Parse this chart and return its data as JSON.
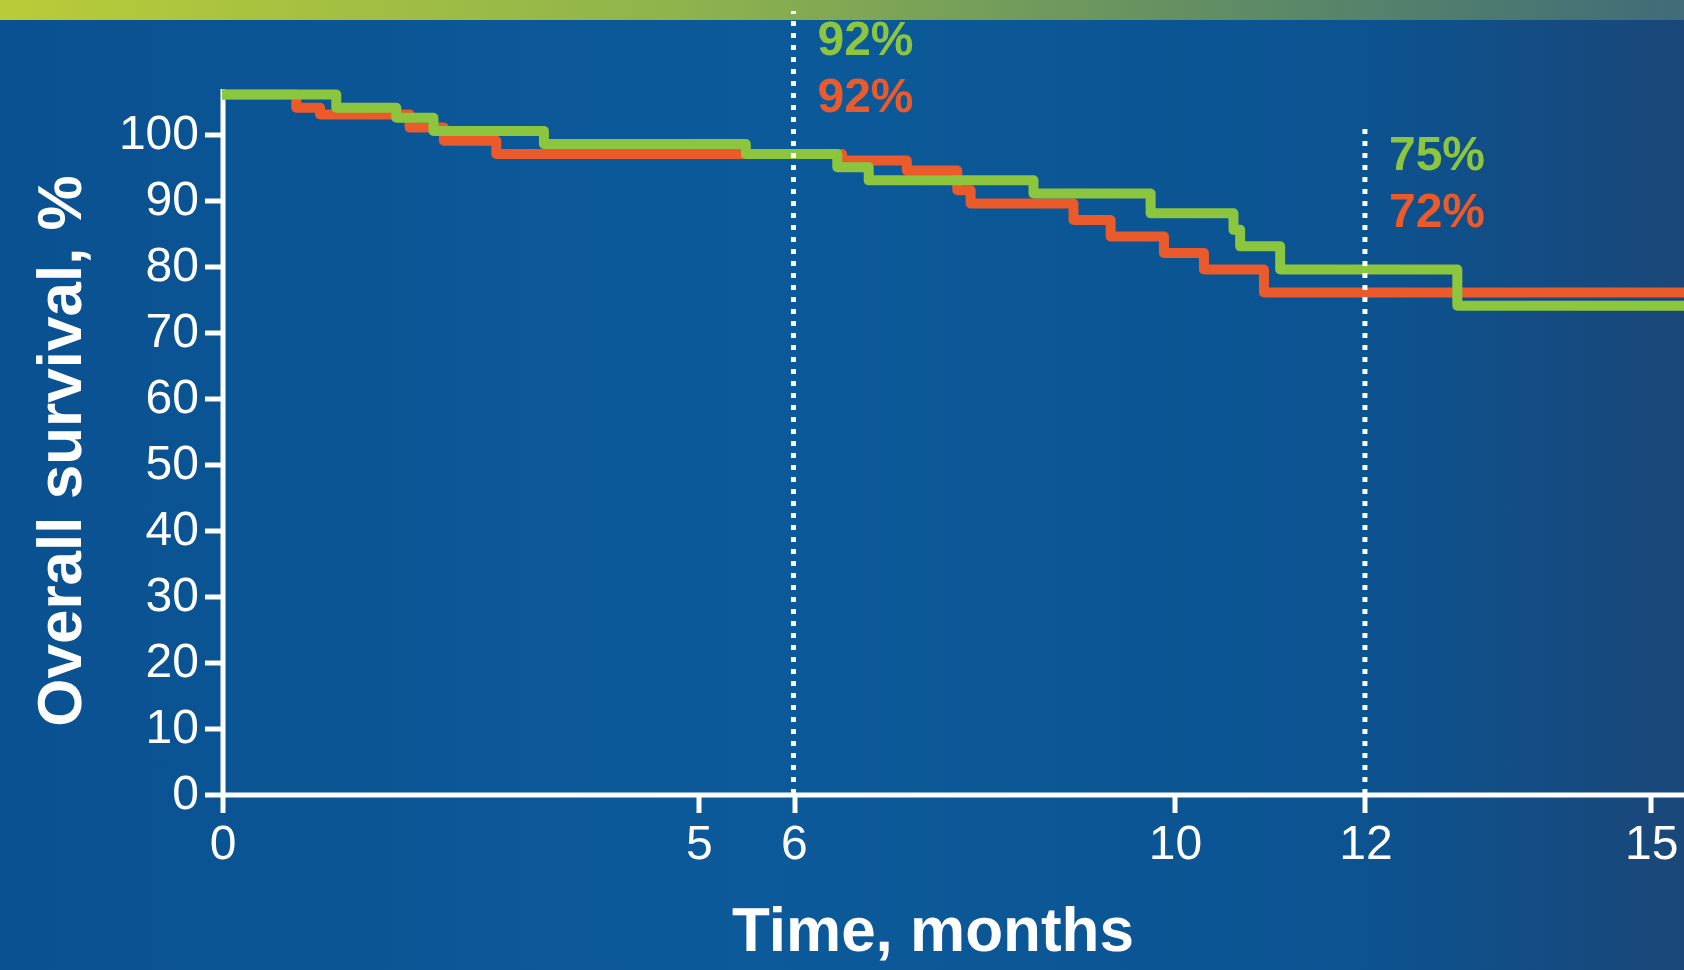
{
  "chart_data": {
    "type": "step",
    "xlabel": "Time, months",
    "ylabel": "Overall survival, %",
    "xlim": [
      0,
      15.35
    ],
    "xticks": [
      0,
      5,
      6,
      10,
      12,
      15
    ],
    "ylim": [
      0,
      107
    ],
    "yticks": [
      0,
      10,
      20,
      30,
      40,
      50,
      60,
      70,
      80,
      90,
      100
    ],
    "series": [
      {
        "color": "#8cc63f",
        "x": [
          0,
          1.2,
          1.83,
          2.22,
          3.38,
          5.5,
          6.46,
          6.79,
          8.52,
          9.75,
          10.62,
          10.69,
          11.11,
          12.97,
          15.35
        ],
        "values": [
          106,
          104,
          102.5,
          100.5,
          98.5,
          97,
          95,
          93,
          91,
          88,
          85.5,
          83,
          79.5,
          74,
          74
        ]
      },
      {
        "color": "#ea5a2a",
        "x": [
          0,
          0.78,
          1.03,
          1.97,
          2.33,
          2.88,
          6.51,
          7.19,
          7.72,
          7.86,
          8.94,
          9.33,
          9.89,
          10.31,
          10.94,
          15.35
        ],
        "values": [
          106,
          104,
          103,
          101,
          99,
          97,
          96,
          94.5,
          91.5,
          89.5,
          87,
          84.5,
          82,
          79.5,
          76,
          76
        ]
      }
    ],
    "ref_lines": [
      {
        "axis": "x",
        "value": 6,
        "color": "#ffffff",
        "line_style": "dotted"
      },
      {
        "axis": "x",
        "value": 12,
        "color": "#ffffff",
        "line_style": "dotted"
      }
    ],
    "annotations": [
      "92%",
      "92%",
      "75%",
      "72%"
    ],
    "line_style": "solid",
    "grid": false
  }
}
